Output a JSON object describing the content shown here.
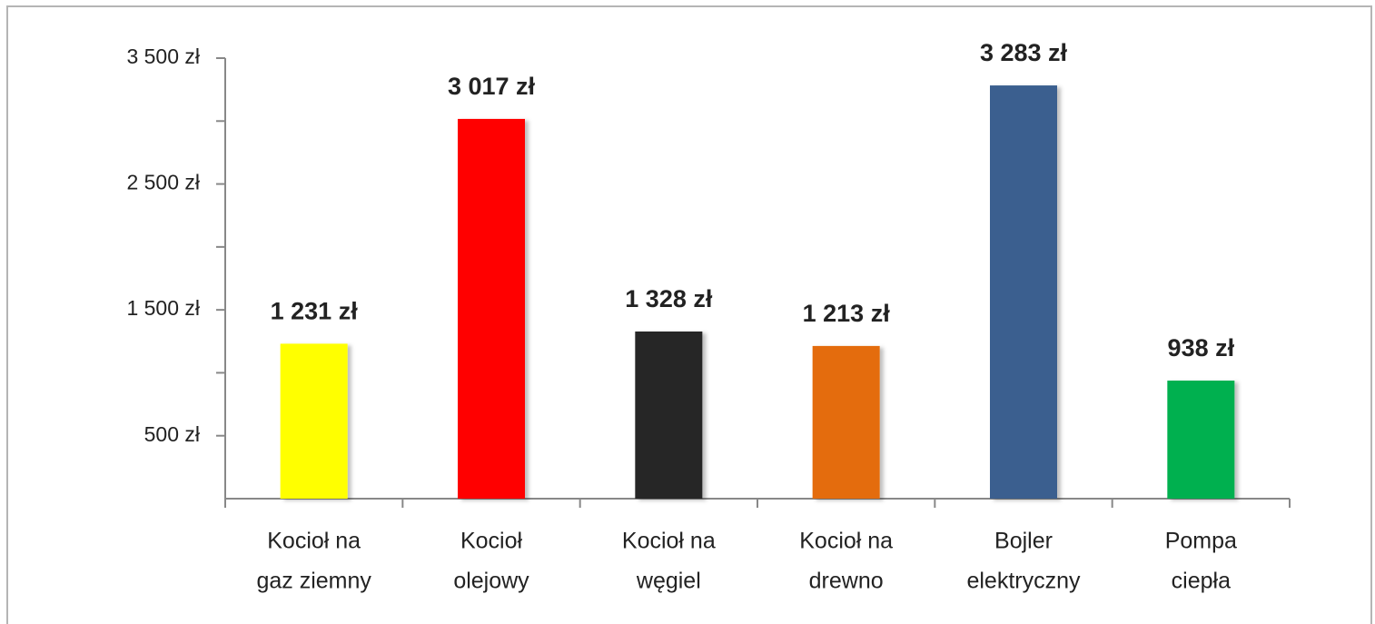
{
  "chart_data": {
    "type": "bar",
    "categories": [
      [
        "Kocioł na",
        "gaz ziemny"
      ],
      [
        "Kocioł",
        "olejowy"
      ],
      [
        "Kocioł na",
        "węgiel"
      ],
      [
        "Kocioł na",
        "drewno"
      ],
      [
        "Bojler",
        "elektryczny"
      ],
      [
        "Pompa",
        "ciepła"
      ]
    ],
    "values": [
      1231,
      3017,
      1328,
      1213,
      3283,
      938
    ],
    "value_labels": [
      "1 231 zł",
      "3 017 zł",
      "1 328 zł",
      "1 213 zł",
      "3 283 zł",
      "938 zł"
    ],
    "colors": [
      "#ffff00",
      "#ff0000",
      "#262626",
      "#e46c0a",
      "#3a5f8f",
      "#00b050"
    ],
    "ylim": [
      0,
      3500
    ],
    "yticks": [
      {
        "value": 500,
        "label": "500 zł"
      },
      {
        "value": 1500,
        "label": "1 500 zł"
      },
      {
        "value": 2500,
        "label": "2 500 zł"
      },
      {
        "value": 3500,
        "label": "3 500 zł"
      }
    ],
    "yminor_ticks": [
      1000,
      2000,
      3000
    ],
    "grid": false
  }
}
